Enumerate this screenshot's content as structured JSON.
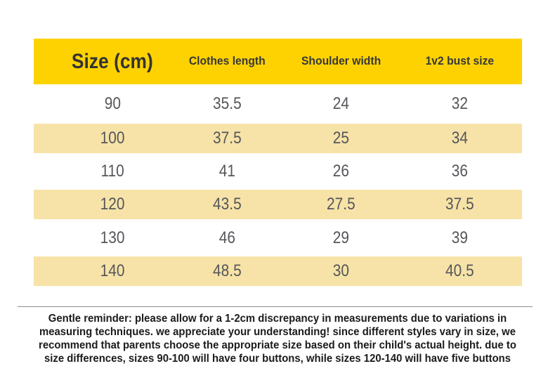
{
  "table": {
    "headers": [
      "Size (cm)",
      "Clothes length",
      "Shoulder width",
      "1v2 bust size"
    ],
    "rows": [
      {
        "size": "90",
        "length": "35.5",
        "shoulder": "24",
        "bust": "32"
      },
      {
        "size": "100",
        "length": "37.5",
        "shoulder": "25",
        "bust": "34"
      },
      {
        "size": "110",
        "length": "41",
        "shoulder": "26",
        "bust": "36"
      },
      {
        "size": "120",
        "length": "43.5",
        "shoulder": "27.5",
        "bust": "37.5"
      },
      {
        "size": "130",
        "length": "46",
        "shoulder": "29",
        "bust": "39"
      },
      {
        "size": "140",
        "length": "48.5",
        "shoulder": "30",
        "bust": "40.5"
      }
    ]
  },
  "footer": {
    "lines": [
      "Gentle reminder: please allow for a 1-2cm discrepancy in measurements due to variations in",
      "measuring techniques. we appreciate your understanding! since different styles vary in size, we",
      "recommend that parents choose the appropriate size based on their child's actual height. due to",
      "size differences, sizes 90-100 will have four buttons, while sizes 120-140 will have five buttons"
    ]
  },
  "colors": {
    "header_bg": "#FDD200",
    "stripe_bg": "#F7E3A8",
    "header_text": "#333333",
    "cell_text": "#55565A",
    "footer_text": "#1B1B1B",
    "divider": "#8F8F8F"
  },
  "chart_data": {
    "type": "table",
    "title": "Size (cm)",
    "columns": [
      "Size (cm)",
      "Clothes length",
      "Shoulder width",
      "1v2 bust size"
    ],
    "rows": [
      [
        90,
        35.5,
        24,
        32
      ],
      [
        100,
        37.5,
        25,
        34
      ],
      [
        110,
        41,
        26,
        36
      ],
      [
        120,
        43.5,
        27.5,
        37.5
      ],
      [
        130,
        46,
        29,
        39
      ],
      [
        140,
        48.5,
        30,
        40.5
      ]
    ],
    "notes": "Alternating white and cream row striping; yellow header band; gentle reminder note below divider"
  }
}
